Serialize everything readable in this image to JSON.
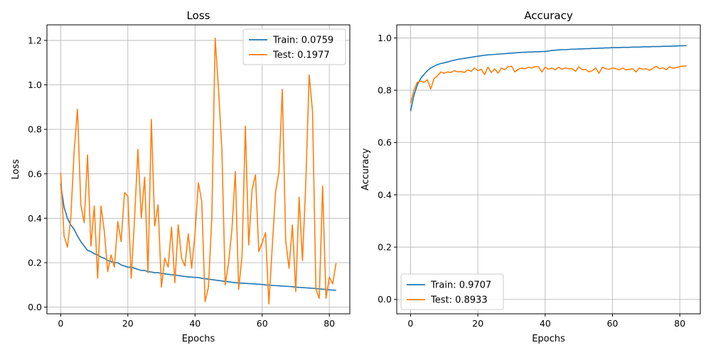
{
  "chart_data": [
    {
      "type": "line",
      "title": "Loss",
      "xlabel": "Epochs",
      "ylabel": "Loss",
      "xlim": [
        -4.1,
        86.1
      ],
      "ylim": [
        -0.03,
        1.27
      ],
      "xticks": [
        0,
        20,
        40,
        60,
        80
      ],
      "yticks": [
        0.0,
        0.2,
        0.4,
        0.6,
        0.8,
        1.0,
        1.2
      ],
      "xtick_labels": [
        "0",
        "20",
        "40",
        "60",
        "80"
      ],
      "ytick_labels": [
        "0.0",
        "0.2",
        "0.4",
        "0.6",
        "0.8",
        "1.0",
        "1.2"
      ],
      "grid": true,
      "legend_placement": "top-right",
      "series": [
        {
          "name": "Train: 0.0759",
          "color": "#1f77b4",
          "values": [
            0.555,
            0.45,
            0.4,
            0.37,
            0.35,
            0.32,
            0.295,
            0.275,
            0.255,
            0.25,
            0.24,
            0.235,
            0.225,
            0.22,
            0.21,
            0.205,
            0.2,
            0.2,
            0.19,
            0.185,
            0.18,
            0.18,
            0.175,
            0.17,
            0.165,
            0.165,
            0.16,
            0.158,
            0.155,
            0.155,
            0.152,
            0.15,
            0.148,
            0.146,
            0.145,
            0.142,
            0.14,
            0.138,
            0.136,
            0.135,
            0.134,
            0.133,
            0.13,
            0.128,
            0.126,
            0.124,
            0.122,
            0.12,
            0.118,
            0.116,
            0.114,
            0.112,
            0.11,
            0.109,
            0.108,
            0.107,
            0.106,
            0.105,
            0.104,
            0.103,
            0.102,
            0.1,
            0.099,
            0.098,
            0.097,
            0.096,
            0.095,
            0.094,
            0.093,
            0.092,
            0.09,
            0.089,
            0.088,
            0.087,
            0.086,
            0.085,
            0.084,
            0.082,
            0.081,
            0.08,
            0.078,
            0.077,
            0.0759
          ]
        },
        {
          "name": "Test: 0.1977",
          "color": "#ff7f0e",
          "values": [
            0.605,
            0.32,
            0.27,
            0.4,
            0.7,
            0.89,
            0.46,
            0.38,
            0.685,
            0.275,
            0.455,
            0.13,
            0.455,
            0.34,
            0.16,
            0.235,
            0.18,
            0.385,
            0.295,
            0.515,
            0.5,
            0.13,
            0.4,
            0.71,
            0.4,
            0.585,
            0.155,
            0.845,
            0.365,
            0.46,
            0.09,
            0.22,
            0.18,
            0.36,
            0.11,
            0.37,
            0.22,
            0.185,
            0.33,
            0.175,
            0.33,
            0.56,
            0.475,
            0.025,
            0.09,
            0.4,
            1.21,
            0.98,
            0.71,
            0.1,
            0.2,
            0.35,
            0.61,
            0.08,
            0.23,
            0.815,
            0.28,
            0.53,
            0.595,
            0.25,
            0.29,
            0.335,
            0.015,
            0.27,
            0.52,
            0.61,
            0.98,
            0.3,
            0.175,
            0.37,
            0.07,
            0.495,
            0.21,
            0.56,
            1.045,
            0.88,
            0.08,
            0.04,
            0.545,
            0.04,
            0.135,
            0.105,
            0.1977
          ]
        }
      ]
    },
    {
      "type": "line",
      "title": "Accuracy",
      "xlabel": "Epochs",
      "ylabel": "Accuracy",
      "xlim": [
        -4.1,
        86.1
      ],
      "ylim": [
        -0.055,
        1.05
      ],
      "xticks": [
        0,
        20,
        40,
        60,
        80
      ],
      "yticks": [
        0.0,
        0.2,
        0.4,
        0.6,
        0.8,
        1.0
      ],
      "xtick_labels": [
        "0",
        "20",
        "40",
        "60",
        "80"
      ],
      "ytick_labels": [
        "0.0",
        "0.2",
        "0.4",
        "0.6",
        "0.8",
        "1.0"
      ],
      "grid": true,
      "legend_placement": "bottom-left",
      "series": [
        {
          "name": "Train: 0.9707",
          "color": "#1f77b4",
          "values": [
            0.72,
            0.78,
            0.82,
            0.845,
            0.86,
            0.875,
            0.885,
            0.892,
            0.898,
            0.902,
            0.905,
            0.908,
            0.912,
            0.915,
            0.918,
            0.92,
            0.922,
            0.924,
            0.926,
            0.928,
            0.93,
            0.932,
            0.934,
            0.935,
            0.936,
            0.937,
            0.938,
            0.939,
            0.94,
            0.941,
            0.942,
            0.943,
            0.944,
            0.945,
            0.945,
            0.946,
            0.946,
            0.947,
            0.947,
            0.948,
            0.948,
            0.95,
            0.952,
            0.953,
            0.954,
            0.955,
            0.955,
            0.956,
            0.957,
            0.957,
            0.958,
            0.958,
            0.959,
            0.959,
            0.96,
            0.96,
            0.961,
            0.961,
            0.962,
            0.962,
            0.963,
            0.963,
            0.963,
            0.964,
            0.964,
            0.964,
            0.965,
            0.965,
            0.965,
            0.966,
            0.966,
            0.966,
            0.967,
            0.967,
            0.967,
            0.968,
            0.968,
            0.968,
            0.969,
            0.969,
            0.97,
            0.97,
            0.9707
          ]
        },
        {
          "name": "Test: 0.8933",
          "color": "#ff7f0e",
          "values": [
            0.75,
            0.8,
            0.83,
            0.835,
            0.83,
            0.84,
            0.805,
            0.845,
            0.855,
            0.87,
            0.865,
            0.87,
            0.868,
            0.875,
            0.87,
            0.872,
            0.868,
            0.878,
            0.872,
            0.885,
            0.875,
            0.88,
            0.86,
            0.888,
            0.868,
            0.882,
            0.865,
            0.885,
            0.878,
            0.89,
            0.892,
            0.87,
            0.88,
            0.885,
            0.882,
            0.888,
            0.885,
            0.89,
            0.89,
            0.87,
            0.888,
            0.88,
            0.885,
            0.878,
            0.888,
            0.88,
            0.885,
            0.882,
            0.883,
            0.872,
            0.89,
            0.878,
            0.88,
            0.87,
            0.875,
            0.885,
            0.865,
            0.888,
            0.882,
            0.88,
            0.885,
            0.882,
            0.878,
            0.885,
            0.878,
            0.88,
            0.882,
            0.87,
            0.885,
            0.88,
            0.882,
            0.876,
            0.884,
            0.892,
            0.882,
            0.886,
            0.878,
            0.89,
            0.884,
            0.887,
            0.89,
            0.892,
            0.8933
          ]
        }
      ]
    }
  ]
}
